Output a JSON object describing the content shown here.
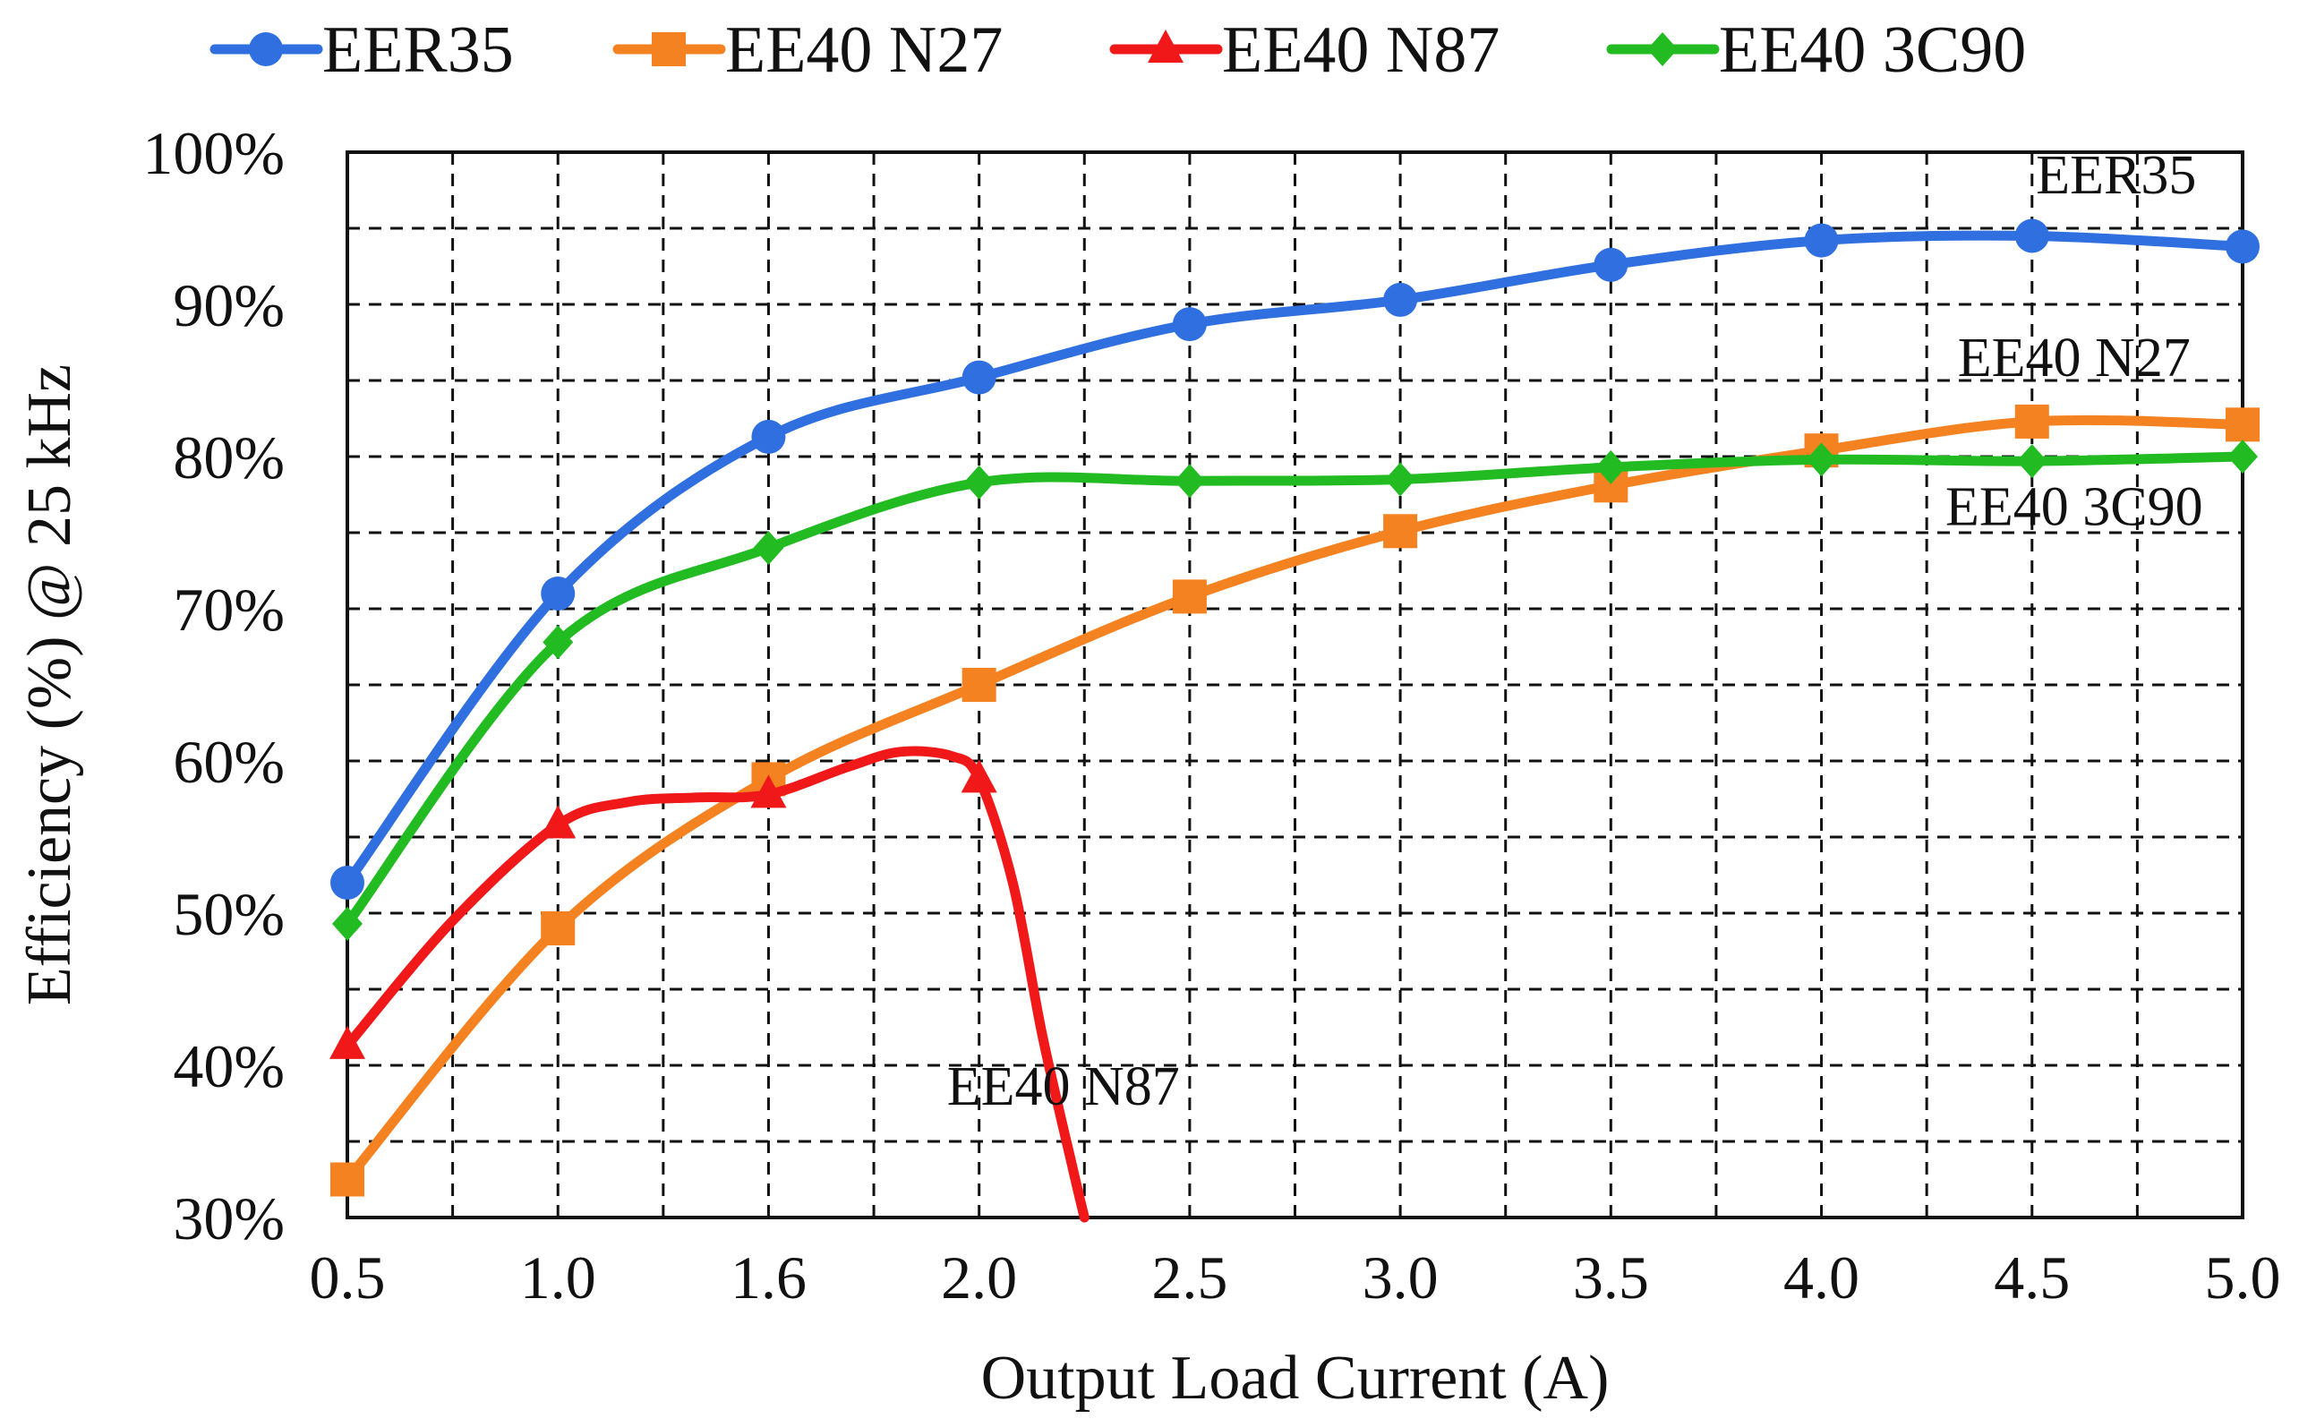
{
  "chart_data": {
    "type": "line",
    "title": "",
    "xlabel": "Output Load Current (A)",
    "ylabel": "Efficiency (%) @ 25 kHz",
    "x_ticks": [
      "0.5",
      "1.0",
      "1.6",
      "2.0",
      "2.5",
      "3.0",
      "3.5",
      "4.0",
      "4.5",
      "5.0"
    ],
    "x_tick_values": [
      0.5,
      1.0,
      1.6,
      2.0,
      2.5,
      3.0,
      3.5,
      4.0,
      4.5,
      5.0
    ],
    "y_ticks": [
      "30%",
      "40%",
      "50%",
      "60%",
      "70%",
      "80%",
      "90%",
      "100%"
    ],
    "ylim": [
      30,
      100
    ],
    "grid": true,
    "legend_position": "top",
    "series": [
      {
        "name": "EER35",
        "color": "#2f6fdf",
        "marker": "circle",
        "points": [
          [
            0.5,
            52
          ],
          [
            1.0,
            71
          ],
          [
            1.6,
            81.3
          ],
          [
            2.0,
            85.2
          ],
          [
            2.5,
            88.7
          ],
          [
            3.0,
            90.3
          ],
          [
            3.5,
            92.6
          ],
          [
            4.0,
            94.2
          ],
          [
            4.5,
            94.5
          ],
          [
            5.0,
            93.8
          ]
        ]
      },
      {
        "name": "EE40 N27",
        "color": "#f58220",
        "marker": "square",
        "points": [
          [
            0.5,
            32.5
          ],
          [
            1.0,
            49
          ],
          [
            1.6,
            58.8
          ],
          [
            2.0,
            65
          ],
          [
            2.5,
            70.8
          ],
          [
            3.0,
            75.1
          ],
          [
            3.5,
            78.1
          ],
          [
            4.0,
            80.4
          ],
          [
            4.5,
            82.3
          ],
          [
            5.0,
            82.1
          ]
        ]
      },
      {
        "name": "EE40 N87",
        "color": "#f01818",
        "marker": "triangle",
        "points": [
          [
            0.5,
            41.3
          ],
          [
            1.0,
            55.8
          ],
          [
            1.6,
            57.8
          ],
          [
            2.0,
            58.8
          ]
        ],
        "curve": [
          [
            0.5,
            41.3
          ],
          [
            0.75,
            49.5
          ],
          [
            1.0,
            55.8
          ],
          [
            1.2,
            57.3
          ],
          [
            1.4,
            57.6
          ],
          [
            1.6,
            57.8
          ],
          [
            1.75,
            59.6
          ],
          [
            1.85,
            60.6
          ],
          [
            1.95,
            60.3
          ],
          [
            2.0,
            58.8
          ],
          [
            2.08,
            52
          ],
          [
            2.15,
            42
          ],
          [
            2.22,
            33.5
          ],
          [
            2.25,
            30
          ]
        ]
      },
      {
        "name": "EE40 3C90",
        "color": "#22bb22",
        "marker": "diamond",
        "points": [
          [
            0.5,
            49.3
          ],
          [
            1.0,
            67.8
          ],
          [
            1.6,
            74
          ],
          [
            2.0,
            78.3
          ],
          [
            2.5,
            78.4
          ],
          [
            3.0,
            78.5
          ],
          [
            3.5,
            79.3
          ],
          [
            4.0,
            79.8
          ],
          [
            4.5,
            79.7
          ],
          [
            5.0,
            80
          ]
        ]
      }
    ],
    "annotations": [
      {
        "text": "EER35",
        "x": 4.7,
        "y": 97.3
      },
      {
        "text": "EE40 N27",
        "x": 4.6,
        "y": 85.3
      },
      {
        "text": "EE40 3C90",
        "x": 4.6,
        "y": 75.5
      },
      {
        "text": "EE40 N87",
        "x": 2.2,
        "y": 37.4
      }
    ]
  }
}
